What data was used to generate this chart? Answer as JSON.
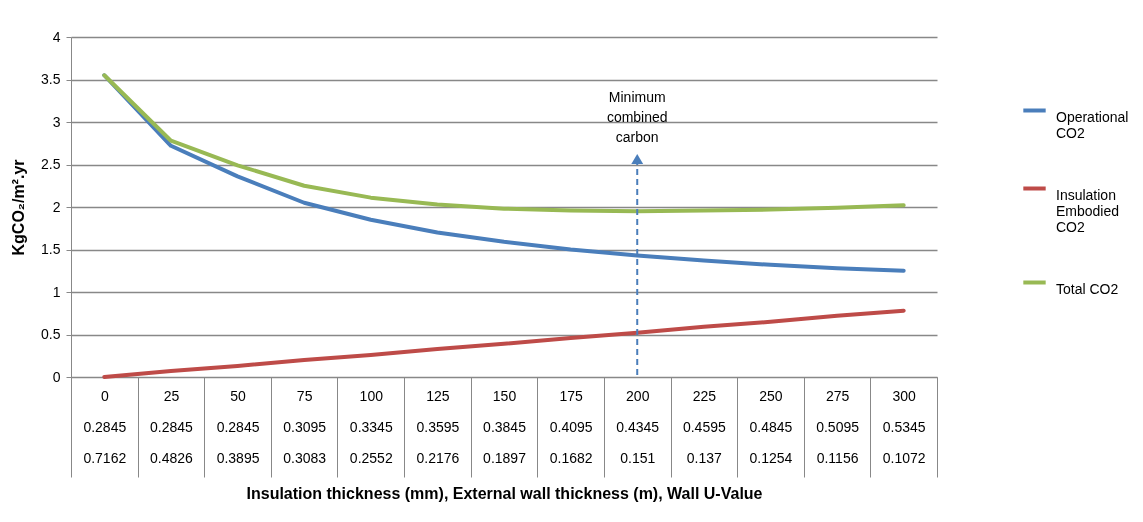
{
  "chart_data": {
    "type": "line",
    "xlabel": "Insulation thickness (mm), External wall thickness (m), Wall U-Value",
    "ylabel": "KgCO₂/m².yr",
    "categories": [
      "0\n0.2845\n0.7162",
      "25\n0.2845\n0.4826",
      "50\n0.2845\n0.3895",
      "75\n0.3095\n0.3083",
      "100\n0.3345\n0.2552",
      "125\n0.3595\n0.2176",
      "150\n0.3845\n0.1897",
      "175\n0.4095\n0.1682",
      "200\n0.4345\n0.151",
      "225\n0.4595\n0.137",
      "250\n0.4845\n0.1254",
      "275\n0.5095\n0.1156",
      "300\n0.5345\n0.1072"
    ],
    "series": [
      {
        "name": "Operational CO2",
        "color": "#4a7ebb",
        "values": [
          3.55,
          2.72,
          2.36,
          2.05,
          1.85,
          1.7,
          1.59,
          1.5,
          1.43,
          1.37,
          1.32,
          1.28,
          1.25
        ]
      },
      {
        "name": "Insulation Embodied CO2",
        "color": "#be4b48",
        "values": [
          0,
          0.07,
          0.13,
          0.2,
          0.26,
          0.33,
          0.39,
          0.46,
          0.52,
          0.59,
          0.65,
          0.72,
          0.78
        ]
      },
      {
        "name": "Total CO2",
        "color": "#98b954",
        "values": [
          3.55,
          2.78,
          2.49,
          2.25,
          2.11,
          2.03,
          1.98,
          1.96,
          1.95,
          1.96,
          1.97,
          1.99,
          2.02
        ]
      }
    ],
    "ylim": [
      0,
      4
    ],
    "yticks": [
      0,
      0.5,
      1,
      1.5,
      2,
      2.5,
      3,
      3.5,
      4
    ],
    "grid": "y",
    "legend": "right",
    "marker": "none",
    "line_style": "solid",
    "ref_lines": [
      {
        "axis": "x",
        "value": "200\n0.4345\n0.151",
        "label": "Minimum combined carbon",
        "color": "#4a7ebb",
        "line_style": "dashed"
      }
    ]
  }
}
